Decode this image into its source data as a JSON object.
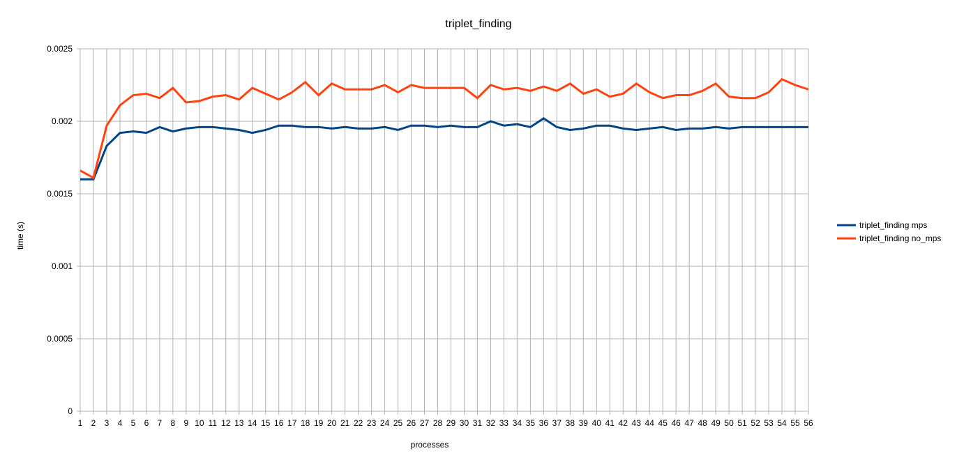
{
  "chart_data": {
    "type": "line",
    "title": "triplet_finding",
    "xlabel": "processes",
    "ylabel": "time (s)",
    "ylim": [
      0,
      0.0025
    ],
    "yticks": [
      "0",
      "0.0005",
      "0.001",
      "0.0015",
      "0.002",
      "0.0025"
    ],
    "grid": true,
    "legend_position": "right",
    "categories": [
      "1",
      "2",
      "3",
      "4",
      "5",
      "6",
      "7",
      "8",
      "9",
      "10",
      "11",
      "12",
      "13",
      "14",
      "15",
      "16",
      "17",
      "18",
      "19",
      "20",
      "21",
      "22",
      "23",
      "24",
      "25",
      "26",
      "27",
      "28",
      "29",
      "30",
      "31",
      "32",
      "33",
      "34",
      "35",
      "36",
      "37",
      "38",
      "39",
      "40",
      "41",
      "42",
      "43",
      "44",
      "45",
      "46",
      "47",
      "48",
      "49",
      "50",
      "51",
      "52",
      "53",
      "54",
      "55",
      "56"
    ],
    "series": [
      {
        "name": "triplet_finding mps",
        "color": "#004586",
        "values": [
          0.0016,
          0.0016,
          0.00183,
          0.00192,
          0.00193,
          0.00192,
          0.00196,
          0.00193,
          0.00195,
          0.00196,
          0.00196,
          0.00195,
          0.00194,
          0.00192,
          0.00194,
          0.00197,
          0.00197,
          0.00196,
          0.00196,
          0.00195,
          0.00196,
          0.00195,
          0.00195,
          0.00196,
          0.00194,
          0.00197,
          0.00197,
          0.00196,
          0.00197,
          0.00196,
          0.00196,
          0.002,
          0.00197,
          0.00198,
          0.00196,
          0.00202,
          0.00196,
          0.00194,
          0.00195,
          0.00197,
          0.00197,
          0.00195,
          0.00194,
          0.00195,
          0.00196,
          0.00194,
          0.00195,
          0.00195,
          0.00196,
          0.00195,
          0.00196,
          0.00196,
          0.00196,
          0.00196,
          0.00196,
          0.00196
        ]
      },
      {
        "name": "triplet_finding no_mps",
        "color": "#ff420e",
        "values": [
          0.00166,
          0.00161,
          0.00197,
          0.00211,
          0.00218,
          0.00219,
          0.00216,
          0.00223,
          0.00213,
          0.00214,
          0.00217,
          0.00218,
          0.00215,
          0.00223,
          0.00219,
          0.00215,
          0.0022,
          0.00227,
          0.00218,
          0.00226,
          0.00222,
          0.00222,
          0.00222,
          0.00225,
          0.0022,
          0.00225,
          0.00223,
          0.00223,
          0.00223,
          0.00223,
          0.00216,
          0.00225,
          0.00222,
          0.00223,
          0.00221,
          0.00224,
          0.00221,
          0.00226,
          0.00219,
          0.00222,
          0.00217,
          0.00219,
          0.00226,
          0.0022,
          0.00216,
          0.00218,
          0.00218,
          0.00221,
          0.00226,
          0.00217,
          0.00216,
          0.00216,
          0.0022,
          0.00229,
          0.00225,
          0.00222
        ]
      }
    ]
  }
}
